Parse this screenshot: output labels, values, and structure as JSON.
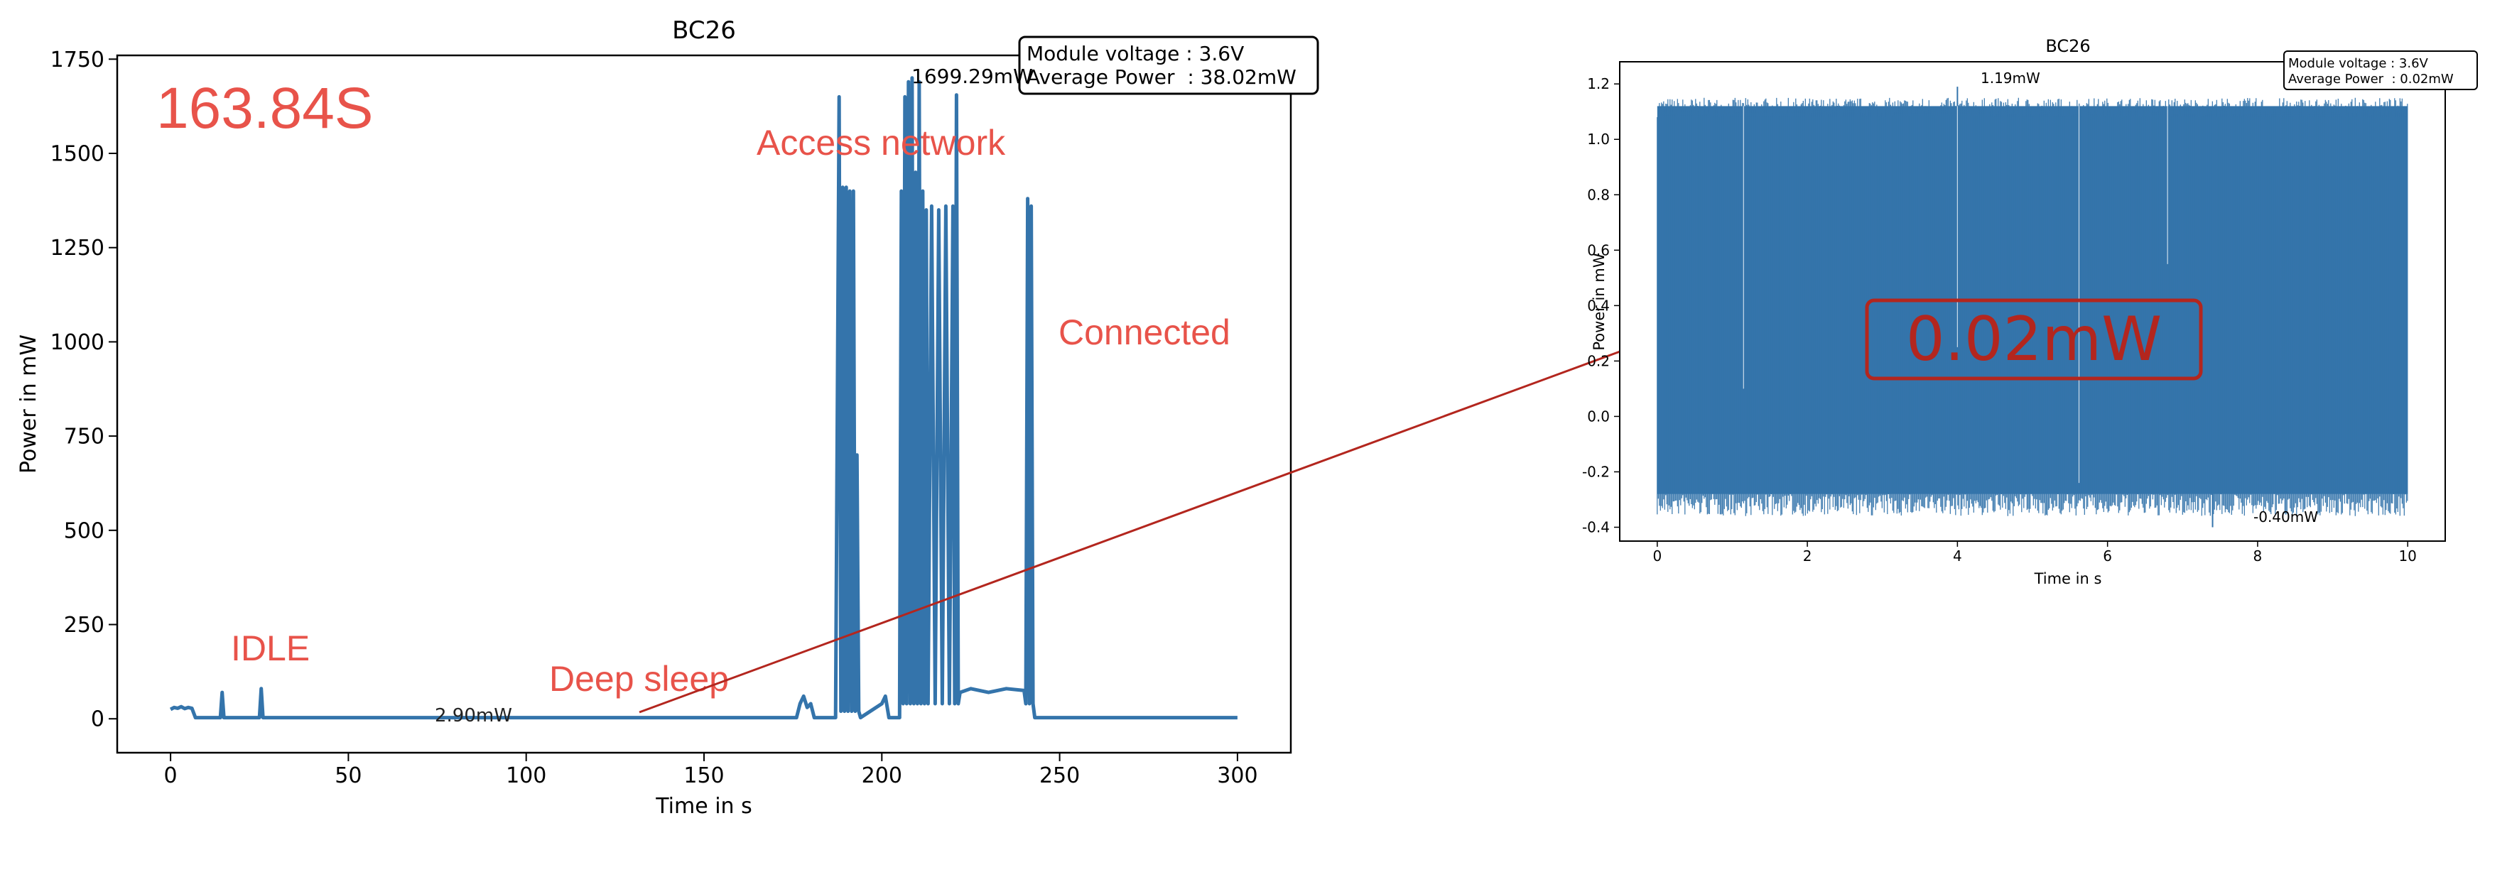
{
  "colors": {
    "series": "#3474ab",
    "annotation": "#e8534a",
    "arrow": "#b3261e",
    "highlight": "#b3261e"
  },
  "chart_data": [
    {
      "type": "line",
      "title": "BC26",
      "xlabel": "Time in s",
      "ylabel": "Power in mW",
      "xlim": [
        -15,
        315
      ],
      "ylim": [
        -90,
        1760
      ],
      "xticks": [
        0,
        50,
        100,
        150,
        200,
        250,
        300
      ],
      "yticks": [
        0,
        250,
        500,
        750,
        1000,
        1250,
        1500,
        1750
      ],
      "grid": false,
      "info_box": {
        "position": "top-right",
        "lines": [
          "Module voltage : 3.6V",
          "Average Power  : 38.02mW"
        ]
      },
      "peak_label": "1699.29mW",
      "min_label": "2.90mW",
      "elapsed_label": "163.84S",
      "annotations": [
        "IDLE",
        "Deep sleep",
        "Access network",
        "Connected"
      ],
      "series": [
        {
          "x": [
            0,
            1,
            2,
            3,
            4,
            5,
            6,
            7,
            14,
            14.5,
            15,
            25,
            25.5,
            26,
            176,
            177,
            178,
            179,
            180,
            181,
            187,
            188,
            188.5,
            189,
            189.5,
            190,
            190.5,
            191,
            191.5,
            192,
            192.5,
            193,
            193.5,
            194,
            200,
            201,
            202,
            205,
            205.5,
            206,
            206.5,
            207,
            207.5,
            208,
            208.5,
            209,
            209.5,
            210,
            210.5,
            211,
            211.5,
            212,
            212.5,
            213,
            214,
            215,
            216,
            217,
            218,
            219,
            220,
            220.5,
            221,
            221.5,
            222,
            225,
            230,
            235,
            240,
            240.5,
            241,
            241.5,
            242,
            242.5,
            243,
            300
          ],
          "y": [
            25,
            30,
            28,
            32,
            27,
            30,
            28,
            3,
            3,
            70,
            3,
            3,
            80,
            3,
            3,
            40,
            60,
            30,
            40,
            3,
            3,
            1650,
            20,
            1410,
            20,
            1410,
            20,
            1400,
            20,
            1400,
            20,
            700,
            20,
            3,
            40,
            60,
            3,
            3,
            1400,
            40,
            1650,
            40,
            1690,
            40,
            1700,
            40,
            1450,
            40,
            1690,
            40,
            1400,
            40,
            1350,
            40,
            1360,
            40,
            1350,
            40,
            1360,
            40,
            1360,
            40,
            1655,
            40,
            70,
            80,
            70,
            80,
            75,
            40,
            1380,
            40,
            1360,
            40,
            3,
            3
          ]
        }
      ]
    },
    {
      "type": "line",
      "title": "BC26",
      "xlabel": "Time in s",
      "ylabel": "Power in mW",
      "xlim": [
        -0.5,
        10.5
      ],
      "ylim": [
        -0.45,
        1.28
      ],
      "xticks": [
        0,
        2,
        4,
        6,
        8,
        10
      ],
      "yticks": [
        -0.4,
        -0.2,
        0.0,
        0.2,
        0.4,
        0.6,
        0.8,
        1.0,
        1.2
      ],
      "grid": false,
      "info_box": {
        "position": "top-right",
        "lines": [
          "Module voltage : 3.6V",
          "Average Power  : 0.02mW"
        ]
      },
      "peak_label": "1.19mW",
      "min_label": "-0.40mW",
      "highlight_label": "0.02mW",
      "series": [
        {
          "x_range": [
            0,
            10
          ],
          "y_max": 1.19,
          "y_min": -0.4,
          "typical_high": 1.12,
          "typical_low": -0.28
        }
      ]
    }
  ]
}
